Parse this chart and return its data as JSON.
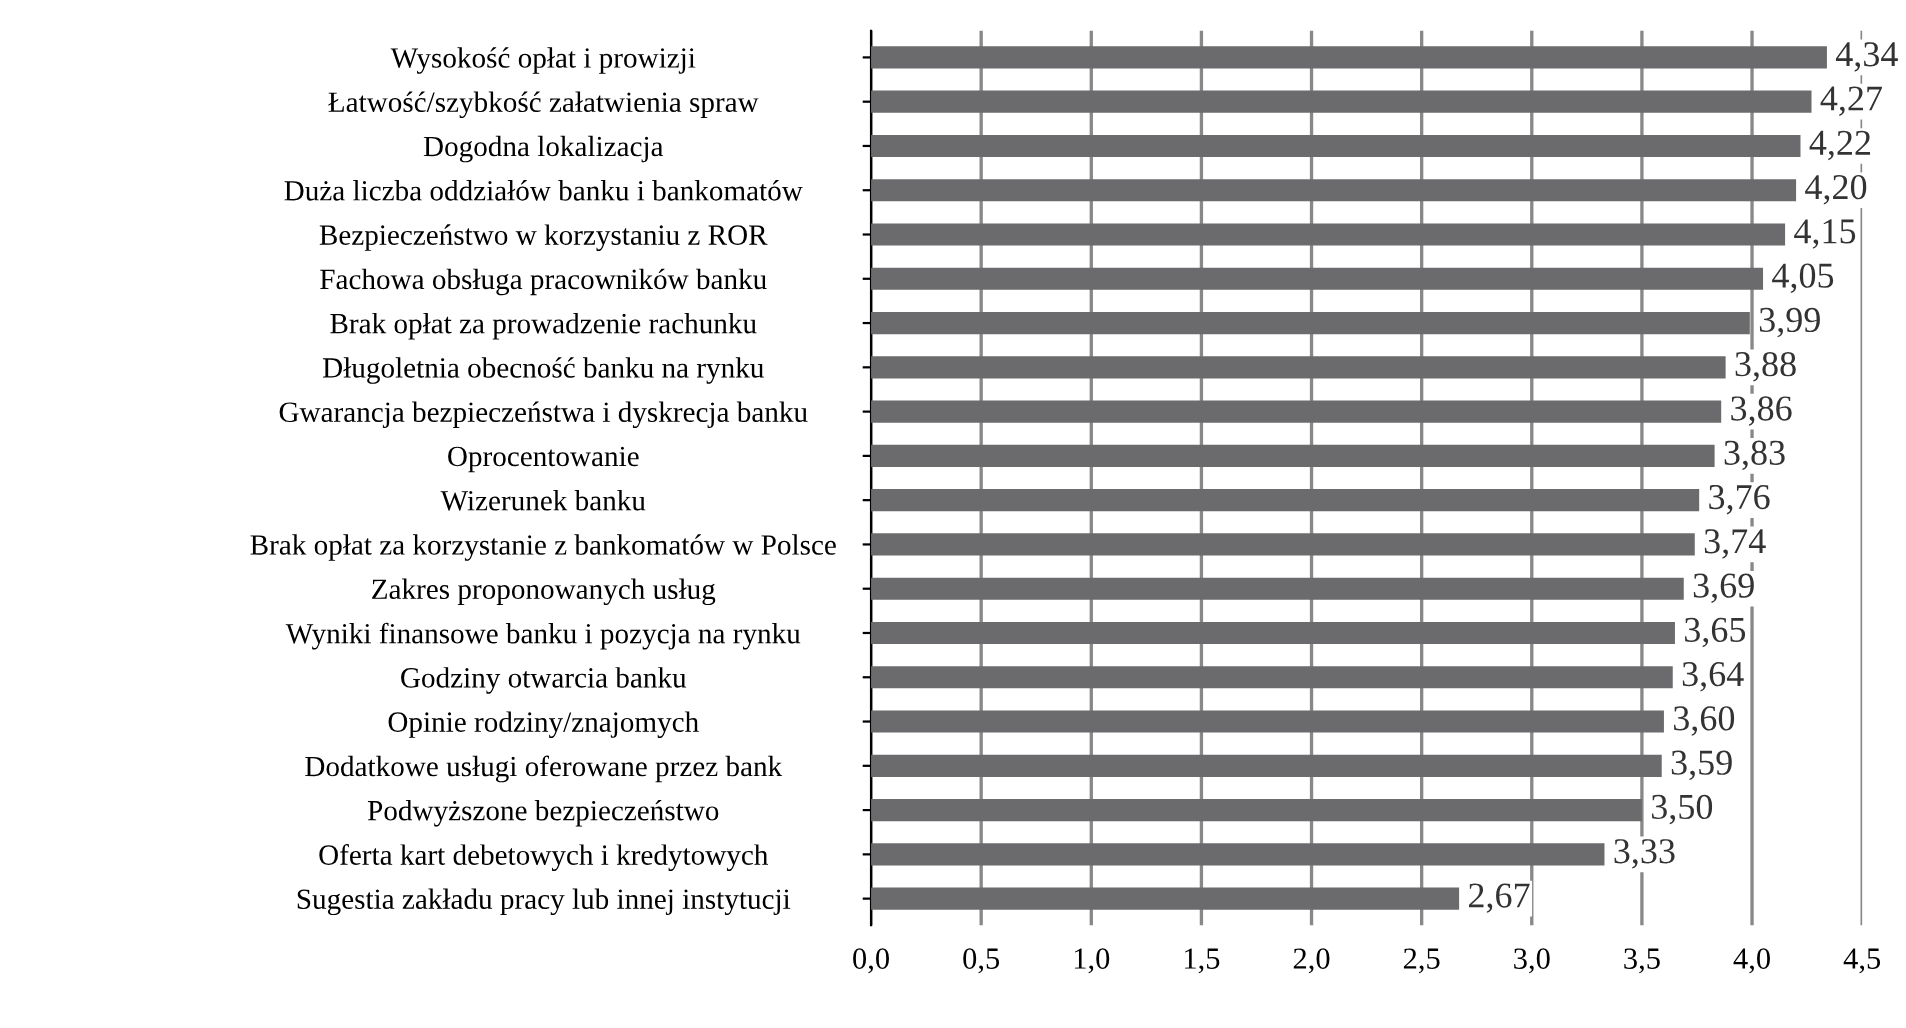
{
  "chart_data": {
    "type": "bar",
    "orientation": "horizontal",
    "categories": [
      "Wysokość opłat i prowizji",
      "Łatwość/szybkość załatwienia spraw",
      "Dogodna lokalizacja",
      "Duża liczba oddziałów banku i bankomatów",
      "Bezpieczeństwo w korzystaniu z ROR",
      "Fachowa obsługa pracowników banku",
      "Brak opłat za prowadzenie rachunku",
      "Długoletnia obecność banku na rynku",
      "Gwarancja bezpieczeństwa i dyskrecja banku",
      "Oprocentowanie",
      "Wizerunek banku",
      "Brak opłat za korzystanie z bankomatów w Polsce",
      "Zakres proponowanych usług",
      "Wyniki finansowe banku i pozycja na rynku",
      "Godziny otwarcia banku",
      "Opinie rodziny/znajomych",
      "Dodatkowe usługi oferowane przez bank",
      "Podwyższone bezpieczeństwo",
      "Oferta kart debetowych i kredytowych",
      "Sugestia zakładu pracy lub innej instytucji"
    ],
    "values": [
      4.34,
      4.27,
      4.22,
      4.2,
      4.15,
      4.05,
      3.99,
      3.88,
      3.86,
      3.83,
      3.76,
      3.74,
      3.69,
      3.65,
      3.64,
      3.6,
      3.59,
      3.5,
      3.33,
      2.67
    ],
    "value_labels": [
      "4,34",
      "4,27",
      "4,22",
      "4,20",
      "4,15",
      "4,05",
      "3,99",
      "3,88",
      "3,86",
      "3,83",
      "3,76",
      "3,74",
      "3,69",
      "3,65",
      "3,64",
      "3,60",
      "3,59",
      "3,50",
      "3,33",
      "2,67"
    ],
    "color": "#6b6b6d",
    "xlim": [
      0,
      4.5
    ],
    "xticks": [
      {
        "value": 0,
        "label": "0,0"
      },
      {
        "value": 0.5,
        "label": "0,5"
      },
      {
        "value": 1,
        "label": "1,0"
      },
      {
        "value": 1.5,
        "label": "1,5"
      },
      {
        "value": 2,
        "label": "2,0"
      },
      {
        "value": 2.5,
        "label": "2,5"
      },
      {
        "value": 3,
        "label": "3,0"
      },
      {
        "value": 3.5,
        "label": "3,5"
      },
      {
        "value": 4,
        "label": "4,0"
      },
      {
        "value": 4.5,
        "label": "4,5"
      }
    ],
    "grid": "x"
  }
}
